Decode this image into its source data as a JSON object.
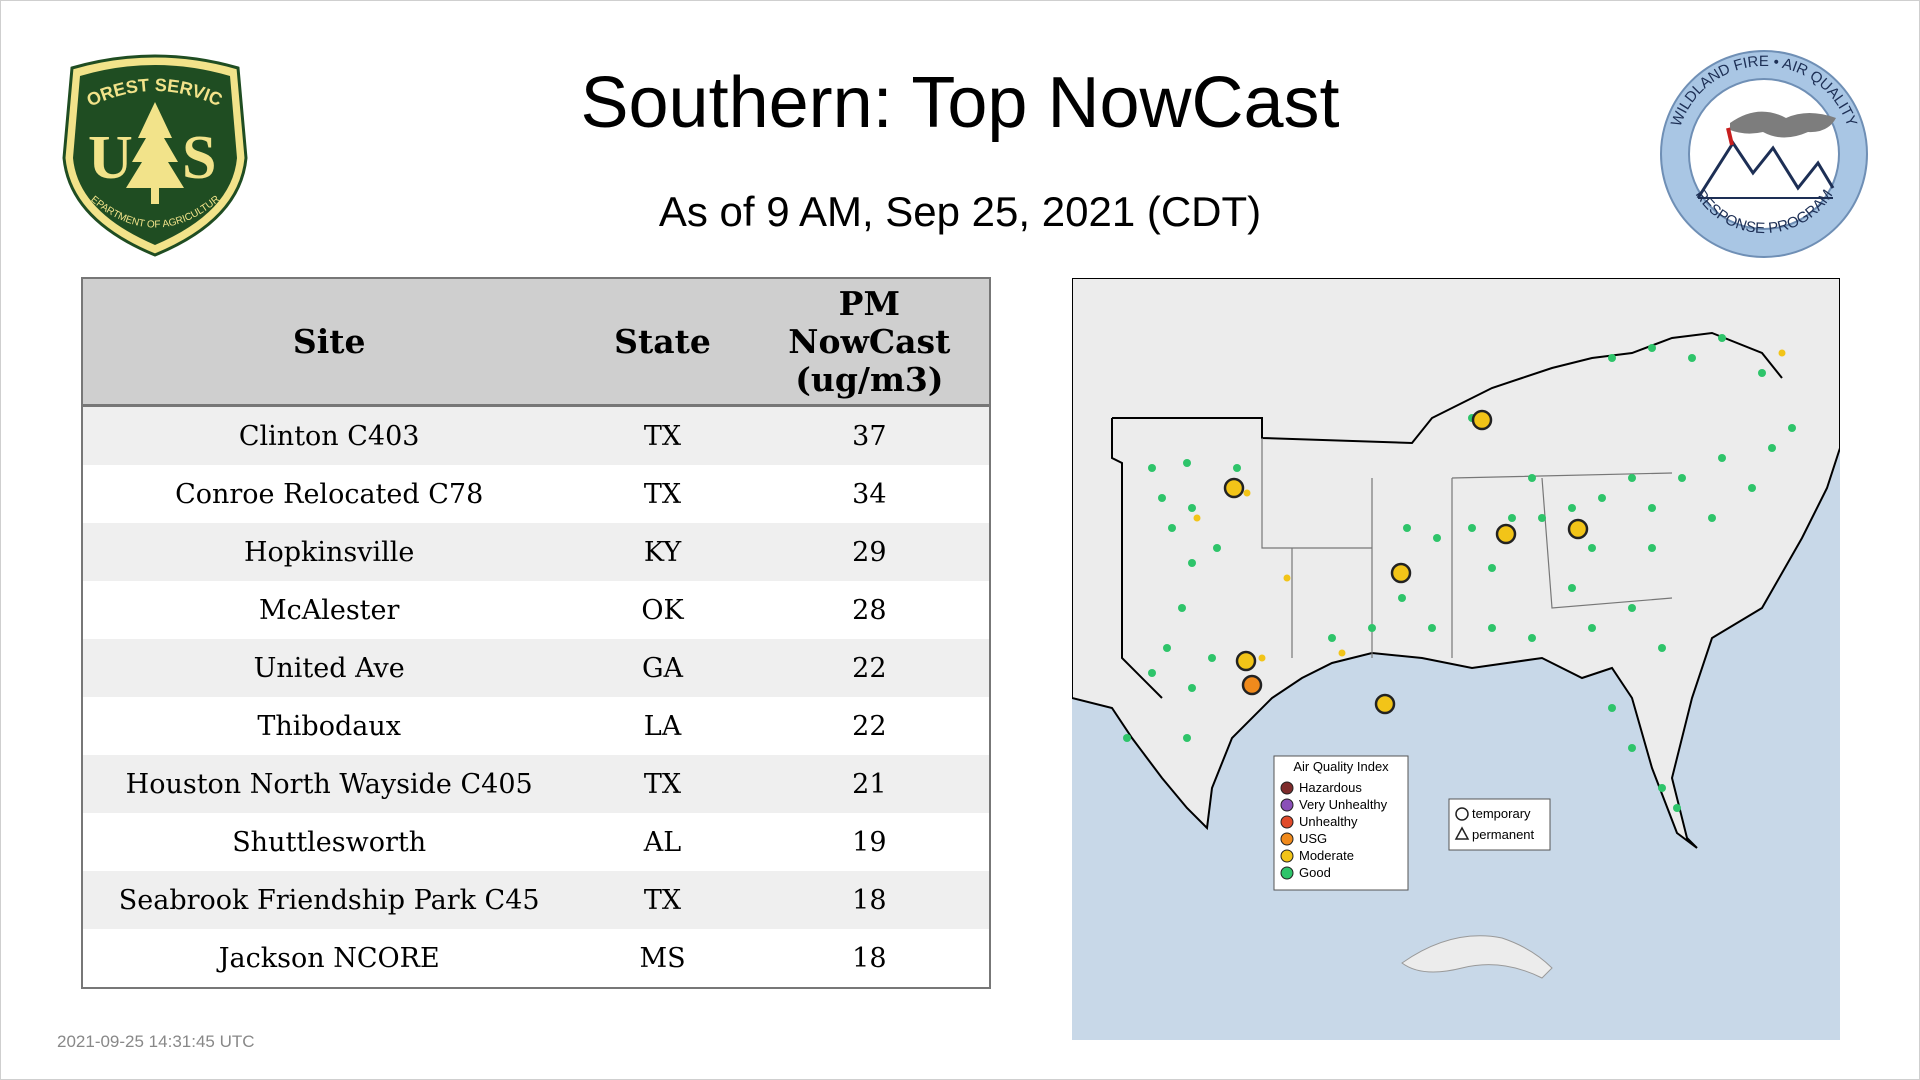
{
  "title": "Southern: Top NowCast",
  "subtitle": "As of  9 AM, Sep 25, 2021 (CDT)",
  "logos": {
    "forest_service": {
      "top_text": "FOREST SERVICE",
      "letters": [
        "U",
        "S"
      ],
      "bottom_text": "DEPARTMENT OF AGRICULTURE"
    },
    "wildland_fire": {
      "top_text": "WILDLAND FIRE • AIR QUALITY",
      "bottom_text": "RESPONSE PROGRAM"
    }
  },
  "table": {
    "headers": {
      "site": "Site",
      "state": "State",
      "pm_line1": "PM",
      "pm_line2": "NowCast",
      "pm_line3": "(ug/m3)"
    },
    "rows": [
      {
        "site": "Clinton C403",
        "state": "TX",
        "value": "37"
      },
      {
        "site": "Conroe Relocated C78",
        "state": "TX",
        "value": "34"
      },
      {
        "site": "Hopkinsville",
        "state": "KY",
        "value": "29"
      },
      {
        "site": "McAlester",
        "state": "OK",
        "value": "28"
      },
      {
        "site": "United Ave",
        "state": "GA",
        "value": "22"
      },
      {
        "site": "Thibodaux",
        "state": "LA",
        "value": "22"
      },
      {
        "site": "Houston North Wayside C405",
        "state": "TX",
        "value": "21"
      },
      {
        "site": "Shuttlesworth",
        "state": "AL",
        "value": "19"
      },
      {
        "site": "Seabrook Friendship Park C45",
        "state": "TX",
        "value": "18"
      },
      {
        "site": "Jackson NCORE",
        "state": "MS",
        "value": "18"
      }
    ]
  },
  "map": {
    "legend": {
      "title": "Air Quality Index",
      "items": [
        {
          "label": "Hazardous",
          "color": "#7e2b2b"
        },
        {
          "label": "Very Unhealthy",
          "color": "#8a4fb8"
        },
        {
          "label": "Unhealthy",
          "color": "#e04a2a"
        },
        {
          "label": "USG",
          "color": "#f08a1c"
        },
        {
          "label": "Moderate",
          "color": "#f2c418"
        },
        {
          "label": "Good",
          "color": "#2ec46a"
        }
      ]
    },
    "shape_legend": {
      "temporary": "temporary",
      "permanent": "permanent"
    }
  },
  "timestamp": "2021-09-25 14:31:45 UTC",
  "colors": {
    "header_bg": "#cfcfcf",
    "row_alt": "#efefef",
    "ocean": "#c8d8e8",
    "land": "#ececec",
    "forest_green": "#1f4d22",
    "forest_gold": "#f2e38a"
  }
}
